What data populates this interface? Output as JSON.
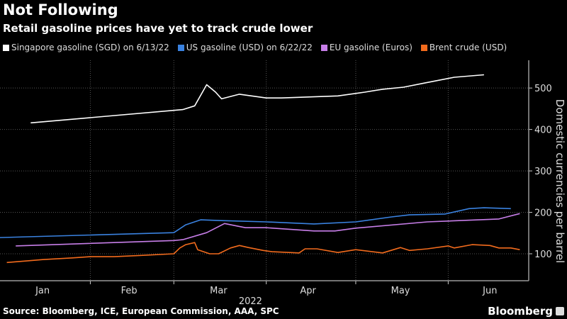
{
  "header": {
    "title": "Not Following",
    "subtitle": "Retail gasoline prices have yet to track crude lower"
  },
  "footer": {
    "source": "Source: Bloomberg, ICE, European Commission, AAA, SPC",
    "brand": "Bloomberg"
  },
  "chart_data": {
    "type": "line",
    "title": "Not Following",
    "subtitle": "Retail gasoline prices have yet to track crude lower",
    "xlabel": "2022",
    "ylabel": "Domestic currencies per barrel",
    "xlim": [
      "2022-01-01",
      "2022-06-28"
    ],
    "ylim": [
      35,
      567
    ],
    "x_ticks": [
      {
        "label": "Jan",
        "date": "2022-01-16"
      },
      {
        "label": "Feb",
        "date": "2022-02-14"
      },
      {
        "label": "Mar",
        "date": "2022-03-16"
      },
      {
        "label": "Apr",
        "date": "2022-04-15"
      },
      {
        "label": "May",
        "date": "2022-05-16"
      },
      {
        "label": "Jun",
        "date": "2022-06-15"
      }
    ],
    "x_gridlines": [
      "2022-02-01",
      "2022-03-01",
      "2022-04-01",
      "2022-05-01",
      "2022-06-01"
    ],
    "y_ticks": [
      100,
      200,
      300,
      400,
      500
    ],
    "y_axis_side": "right",
    "grid": true,
    "legend_position": "top",
    "series": [
      {
        "name": "Singapore gasoline (SGD) on 6/13/22",
        "color": "#ffffff",
        "points": [
          [
            "2022-01-12",
            416
          ],
          [
            "2022-03-04",
            448
          ],
          [
            "2022-03-08",
            457
          ],
          [
            "2022-03-12",
            508
          ],
          [
            "2022-03-15",
            490
          ],
          [
            "2022-03-17",
            474
          ],
          [
            "2022-03-23",
            485
          ],
          [
            "2022-04-01",
            476
          ],
          [
            "2022-04-06",
            476
          ],
          [
            "2022-04-25",
            481
          ],
          [
            "2022-05-04",
            490
          ],
          [
            "2022-05-10",
            497
          ],
          [
            "2022-05-17",
            502
          ],
          [
            "2022-05-24",
            512
          ],
          [
            "2022-06-03",
            526
          ],
          [
            "2022-06-13",
            532
          ]
        ]
      },
      {
        "name": "US gasoline (USD) on 6/22/22",
        "color": "#3a82e0",
        "points": [
          [
            "2022-01-01",
            139
          ],
          [
            "2022-03-01",
            151
          ],
          [
            "2022-03-05",
            170
          ],
          [
            "2022-03-10",
            182
          ],
          [
            "2022-03-17",
            180
          ],
          [
            "2022-04-01",
            177
          ],
          [
            "2022-04-17",
            172
          ],
          [
            "2022-05-01",
            177
          ],
          [
            "2022-05-13",
            189
          ],
          [
            "2022-05-19",
            194
          ],
          [
            "2022-05-31",
            196
          ],
          [
            "2022-06-08",
            209
          ],
          [
            "2022-06-13",
            211
          ],
          [
            "2022-06-22",
            209
          ]
        ]
      },
      {
        "name": "EU gasoline (Euros)",
        "color": "#c77ee8",
        "points": [
          [
            "2022-01-07",
            119
          ],
          [
            "2022-03-01",
            132
          ],
          [
            "2022-03-04",
            134
          ],
          [
            "2022-03-12",
            151
          ],
          [
            "2022-03-18",
            173
          ],
          [
            "2022-03-25",
            163
          ],
          [
            "2022-04-01",
            163
          ],
          [
            "2022-04-17",
            155
          ],
          [
            "2022-04-24",
            155
          ],
          [
            "2022-05-01",
            162
          ],
          [
            "2022-05-25",
            177
          ],
          [
            "2022-06-18",
            184
          ],
          [
            "2022-06-25",
            197
          ]
        ]
      },
      {
        "name": "Brent crude (USD)",
        "color": "#f26b1d",
        "points": [
          [
            "2022-01-04",
            79
          ],
          [
            "2022-01-11",
            83
          ],
          [
            "2022-01-16",
            86
          ],
          [
            "2022-01-26",
            90
          ],
          [
            "2022-02-01",
            93
          ],
          [
            "2022-02-09",
            93
          ],
          [
            "2022-02-18",
            96
          ],
          [
            "2022-03-01",
            100
          ],
          [
            "2022-03-03",
            114
          ],
          [
            "2022-03-05",
            122
          ],
          [
            "2022-03-08",
            127
          ],
          [
            "2022-03-09",
            110
          ],
          [
            "2022-03-13",
            100
          ],
          [
            "2022-03-16",
            100
          ],
          [
            "2022-03-20",
            114
          ],
          [
            "2022-03-23",
            120
          ],
          [
            "2022-03-26",
            115
          ],
          [
            "2022-03-31",
            108
          ],
          [
            "2022-04-03",
            105
          ],
          [
            "2022-04-12",
            102
          ],
          [
            "2022-04-14",
            112
          ],
          [
            "2022-04-18",
            112
          ],
          [
            "2022-04-25",
            103
          ],
          [
            "2022-05-01",
            110
          ],
          [
            "2022-05-10",
            102
          ],
          [
            "2022-05-16",
            115
          ],
          [
            "2022-05-19",
            108
          ],
          [
            "2022-05-25",
            112
          ],
          [
            "2022-06-01",
            119
          ],
          [
            "2022-06-03",
            114
          ],
          [
            "2022-06-09",
            122
          ],
          [
            "2022-06-15",
            120
          ],
          [
            "2022-06-18",
            114
          ],
          [
            "2022-06-22",
            114
          ],
          [
            "2022-06-25",
            110
          ]
        ]
      }
    ]
  }
}
